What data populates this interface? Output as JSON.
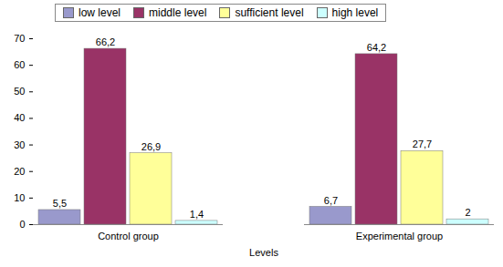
{
  "chart_data": {
    "type": "bar",
    "x_label": "Levels",
    "categories": [
      "Control group",
      "Experimental group"
    ],
    "series": [
      {
        "name": "low level",
        "color": "#9999cc",
        "values": [
          5.5,
          6.7
        ],
        "value_labels": [
          "5,5",
          "6,7"
        ]
      },
      {
        "name": "middle level",
        "color": "#993366",
        "values": [
          66.2,
          64.2
        ],
        "value_labels": [
          "66,2",
          "64,2"
        ]
      },
      {
        "name": "sufficient level",
        "color": "#ffff99",
        "values": [
          26.9,
          27.7
        ],
        "value_labels": [
          "26,9",
          "27,7"
        ]
      },
      {
        "name": "high level",
        "color": "#ccffff",
        "values": [
          1.4,
          2
        ],
        "value_labels": [
          "1,4",
          "2"
        ]
      }
    ],
    "ylim": [
      0,
      70
    ],
    "yticks": [
      0,
      10,
      20,
      30,
      40,
      50,
      60,
      70
    ],
    "data_labels": true,
    "legend": "top"
  }
}
